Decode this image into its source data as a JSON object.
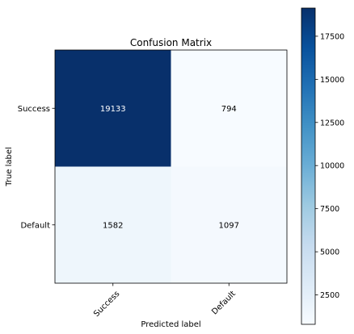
{
  "chart_data": {
    "type": "heatmap",
    "title": "Confusion Matrix",
    "xlabel": "Predicted label",
    "ylabel": "True label",
    "x_categories": [
      "Success",
      "Default"
    ],
    "y_categories": [
      "Success",
      "Default"
    ],
    "matrix": [
      [
        19133,
        794
      ],
      [
        1582,
        1097
      ]
    ],
    "colorbar": {
      "ticks": [
        2500,
        5000,
        7500,
        10000,
        12500,
        15000,
        17500
      ],
      "range": [
        794,
        19133
      ],
      "colormap": "Blues"
    },
    "grid": false
  },
  "colors": {
    "scale_low": "#f7fbff",
    "scale_high": "#08306b"
  }
}
